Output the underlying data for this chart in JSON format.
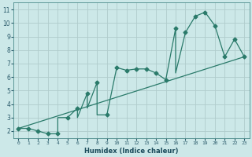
{
  "xlabel": "Humidex (Indice chaleur)",
  "xlim": [
    -0.5,
    23.5
  ],
  "ylim": [
    1.5,
    11.5
  ],
  "xticks": [
    0,
    1,
    2,
    3,
    4,
    5,
    6,
    7,
    8,
    9,
    10,
    11,
    12,
    13,
    14,
    15,
    16,
    17,
    18,
    19,
    20,
    21,
    22,
    23
  ],
  "yticks": [
    2,
    3,
    4,
    5,
    6,
    7,
    8,
    9,
    10,
    11
  ],
  "bg_color": "#cce8e8",
  "line_color": "#2a7a6a",
  "grid_color": "#b0cccc",
  "curve_x": [
    0,
    1,
    2,
    3,
    4,
    4,
    5,
    6,
    6,
    7,
    7,
    8,
    8,
    9,
    10,
    11,
    12,
    13,
    14,
    15,
    16,
    16,
    17,
    18,
    19,
    20,
    21,
    22,
    23
  ],
  "curve_y": [
    2.2,
    2.2,
    2.0,
    1.8,
    1.8,
    3.0,
    3.0,
    3.7,
    3.0,
    4.8,
    3.7,
    5.6,
    3.2,
    3.2,
    6.7,
    6.5,
    6.6,
    6.6,
    6.3,
    5.8,
    9.6,
    6.3,
    9.3,
    10.5,
    10.8,
    9.8,
    7.5,
    8.8,
    7.5
  ],
  "trend_x": [
    0,
    23
  ],
  "trend_y": [
    2.2,
    7.5
  ],
  "marker_x": [
    0,
    1,
    2,
    3,
    4,
    5,
    6,
    7,
    8,
    9,
    10,
    11,
    12,
    13,
    14,
    15,
    16,
    17,
    18,
    19,
    20,
    21,
    22,
    23
  ],
  "marker_y": [
    2.2,
    2.2,
    2.0,
    1.8,
    1.8,
    3.0,
    3.7,
    4.8,
    5.6,
    3.2,
    6.7,
    6.5,
    6.6,
    6.6,
    6.3,
    5.8,
    9.6,
    9.3,
    10.5,
    10.8,
    9.8,
    7.5,
    8.8,
    7.5
  ]
}
